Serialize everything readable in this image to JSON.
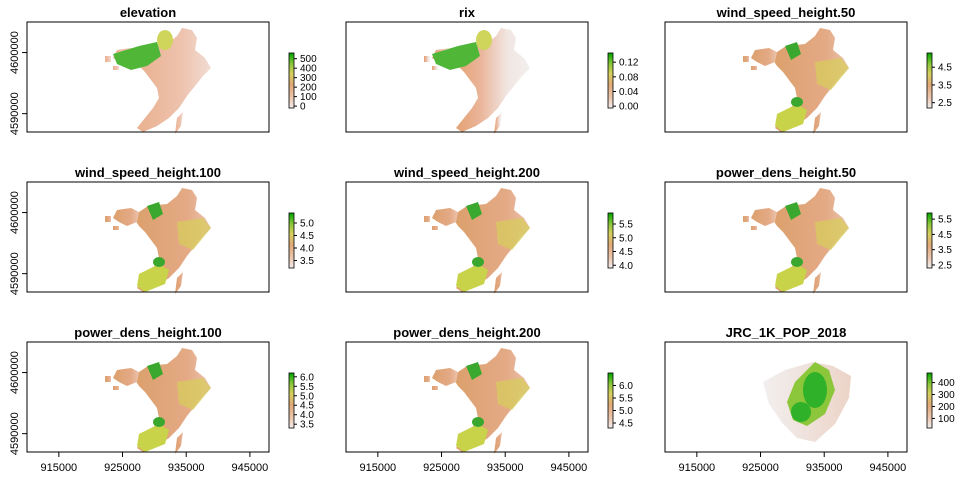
{
  "figure": {
    "layout": "3x3 grid of raster maps"
  },
  "x_axis": {
    "ticks": [
      915000,
      925000,
      935000,
      945000
    ],
    "labels": [
      "915000",
      "925000",
      "935000",
      "945000"
    ],
    "range": [
      910000,
      948000
    ],
    "shown_on_row": 3
  },
  "y_axis": {
    "ticks": [
      4590000,
      4600000
    ],
    "labels": [
      "4590000",
      "4600000"
    ],
    "range": [
      4587000,
      4605000
    ],
    "shown_on_col": 1
  },
  "chart_data": [
    {
      "type": "heatmap",
      "title": "elevation",
      "palette": "terrain",
      "legend": {
        "ticks": [
          0,
          100,
          200,
          300,
          400,
          500
        ],
        "labels": [
          "0",
          "100",
          "200",
          "300",
          "400",
          "500"
        ],
        "range": [
          -20,
          560
        ]
      }
    },
    {
      "type": "heatmap",
      "title": "rix",
      "palette": "terrain",
      "legend": {
        "ticks": [
          0.0,
          0.04,
          0.08,
          0.12
        ],
        "labels": [
          "0.00",
          "0.04",
          "0.08",
          "0.12"
        ],
        "range": [
          -0.005,
          0.145
        ]
      }
    },
    {
      "type": "heatmap",
      "title": "wind_speed_height.50",
      "palette": "terrain",
      "legend": {
        "ticks": [
          2.5,
          3.5,
          4.5
        ],
        "labels": [
          "2.5",
          "3.5",
          "4.5"
        ],
        "range": [
          2.2,
          5.3
        ]
      }
    },
    {
      "type": "heatmap",
      "title": "wind_speed_height.100",
      "palette": "terrain",
      "legend": {
        "ticks": [
          3.5,
          4.0,
          4.5,
          5.0
        ],
        "labels": [
          "3.5",
          "4.0",
          "4.5",
          "5.0"
        ],
        "range": [
          3.2,
          5.4
        ]
      }
    },
    {
      "type": "heatmap",
      "title": "wind_speed_height.200",
      "palette": "terrain",
      "legend": {
        "ticks": [
          4.0,
          4.5,
          5.0,
          5.5
        ],
        "labels": [
          "4.0",
          "4.5",
          "5.0",
          "5.5"
        ],
        "range": [
          3.9,
          5.9
        ]
      }
    },
    {
      "type": "heatmap",
      "title": "power_dens_height.50",
      "palette": "terrain",
      "legend": {
        "ticks": [
          2.5,
          3.5,
          4.5,
          5.5
        ],
        "labels": [
          "2.5",
          "3.5",
          "4.5",
          "5.5"
        ],
        "range": [
          2.3,
          5.9
        ]
      }
    },
    {
      "type": "heatmap",
      "title": "power_dens_height.100",
      "palette": "terrain",
      "legend": {
        "ticks": [
          3.5,
          4.0,
          4.5,
          5.0,
          5.5,
          6.0
        ],
        "labels": [
          "3.5",
          "4.0",
          "4.5",
          "5.0",
          "5.5",
          "6.0"
        ],
        "range": [
          3.3,
          6.2
        ]
      }
    },
    {
      "type": "heatmap",
      "title": "power_dens_height.200",
      "palette": "terrain",
      "legend": {
        "ticks": [
          4.5,
          5.0,
          5.5,
          6.0
        ],
        "labels": [
          "4.5",
          "5.0",
          "5.5",
          "6.0"
        ],
        "range": [
          4.3,
          6.5
        ]
      }
    },
    {
      "type": "heatmap",
      "title": "JRC_1K_POP_2018",
      "palette": "terrain",
      "legend": {
        "ticks": [
          100,
          200,
          300,
          400
        ],
        "labels": [
          "100",
          "200",
          "300",
          "400"
        ],
        "range": [
          20,
          480
        ]
      }
    }
  ]
}
